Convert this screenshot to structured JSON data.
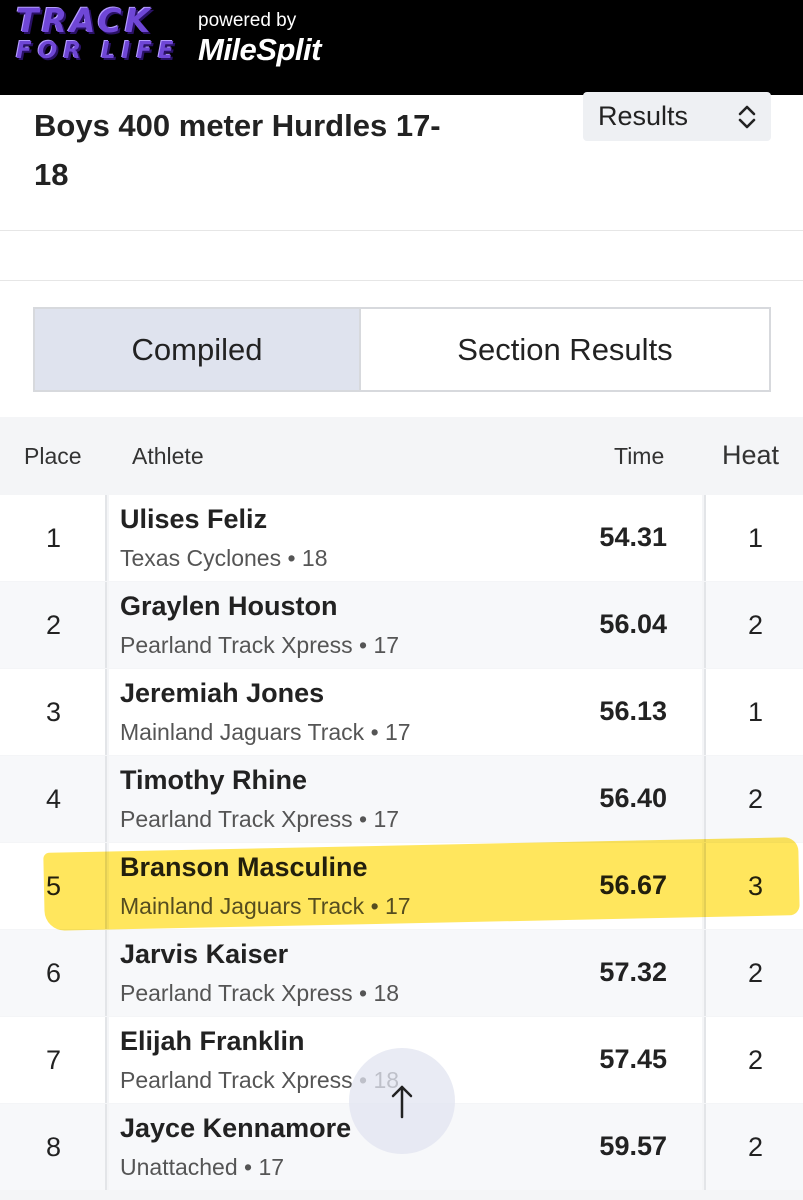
{
  "header": {
    "logo_line1": "TRACK",
    "logo_line2": "FOR LIFE",
    "powered_by": "powered by",
    "brand": "MileSplit"
  },
  "event": {
    "title": "Boys 400 meter Hurdles 17-18",
    "view_select": {
      "value": "Results",
      "icon": "updown-chevron-icon"
    }
  },
  "tabs": [
    {
      "label": "Compiled",
      "active": true
    },
    {
      "label": "Section Results",
      "active": false
    }
  ],
  "table": {
    "columns": [
      "Place",
      "Athlete",
      "Time",
      "Heat"
    ],
    "rows": [
      {
        "place": "1",
        "name": "Ulises Feliz",
        "team": "Texas Cyclones • 18",
        "time": "54.31",
        "heat": "1"
      },
      {
        "place": "2",
        "name": "Graylen Houston",
        "team": "Pearland Track Xpress • 17",
        "time": "56.04",
        "heat": "2"
      },
      {
        "place": "3",
        "name": "Jeremiah Jones",
        "team": "Mainland Jaguars Track • 17",
        "time": "56.13",
        "heat": "1"
      },
      {
        "place": "4",
        "name": "Timothy Rhine",
        "team": "Pearland Track Xpress • 17",
        "time": "56.40",
        "heat": "2"
      },
      {
        "place": "5",
        "name": "Branson Masculine",
        "team": "Mainland Jaguars Track • 17",
        "time": "56.67",
        "heat": "3",
        "highlighted": true
      },
      {
        "place": "6",
        "name": "Jarvis Kaiser",
        "team": "Pearland Track Xpress • 18",
        "time": "57.32",
        "heat": "2"
      },
      {
        "place": "7",
        "name": "Elijah Franklin",
        "team": "Pearland Track Xpress • 18",
        "time": "57.45",
        "heat": "2"
      },
      {
        "place": "8",
        "name": "Jayce Kennamore",
        "team": "Unattached • 17",
        "time": "59.57",
        "heat": "2"
      }
    ]
  },
  "scroll_top": {
    "icon": "arrow-up-icon"
  },
  "colors": {
    "highlight": "#ffdd1e",
    "header_bg": "#000000",
    "logo": "#6f47d6",
    "active_tab": "#dfe3ee"
  }
}
